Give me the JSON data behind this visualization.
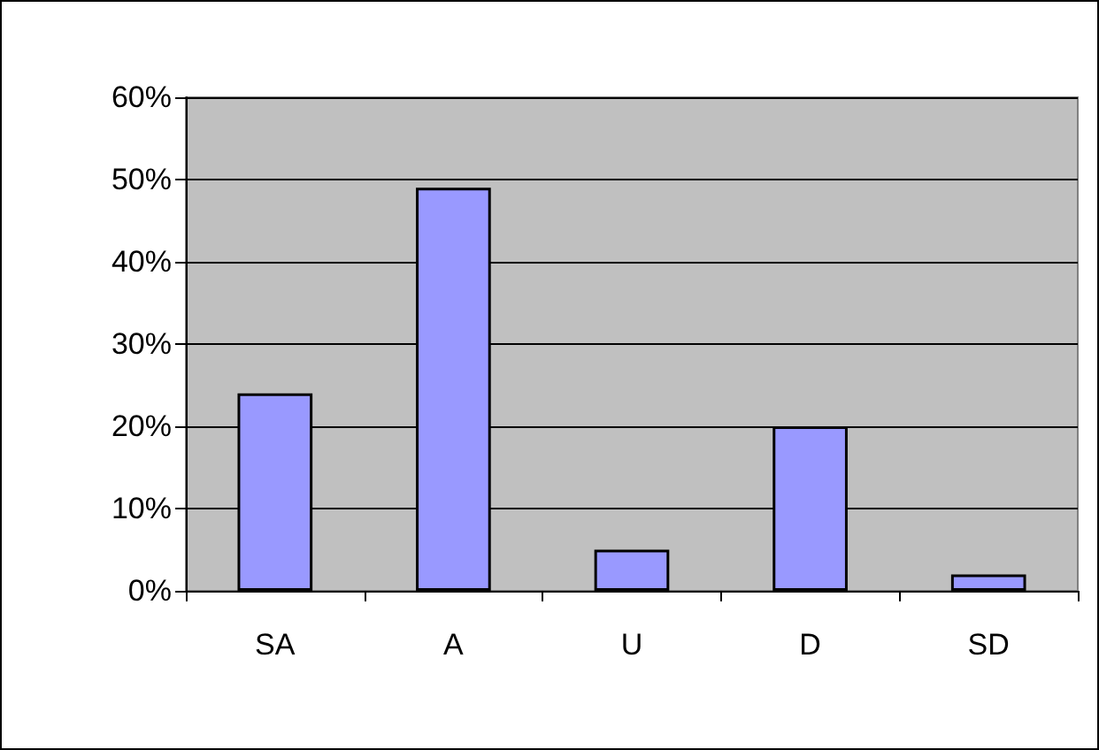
{
  "chart_data": {
    "type": "bar",
    "categories": [
      "SA",
      "A",
      "U",
      "D",
      "SD"
    ],
    "values": [
      24,
      49,
      5,
      20,
      2
    ],
    "color": "#9999ff",
    "ylim": [
      0,
      60
    ],
    "yticks": [
      {
        "value": 0,
        "label": "0%"
      },
      {
        "value": 10,
        "label": "10%"
      },
      {
        "value": 20,
        "label": "20%"
      },
      {
        "value": 30,
        "label": "30%"
      },
      {
        "value": 40,
        "label": "40%"
      },
      {
        "value": 50,
        "label": "50%"
      },
      {
        "value": 60,
        "label": "60%"
      }
    ],
    "grid": "y"
  }
}
